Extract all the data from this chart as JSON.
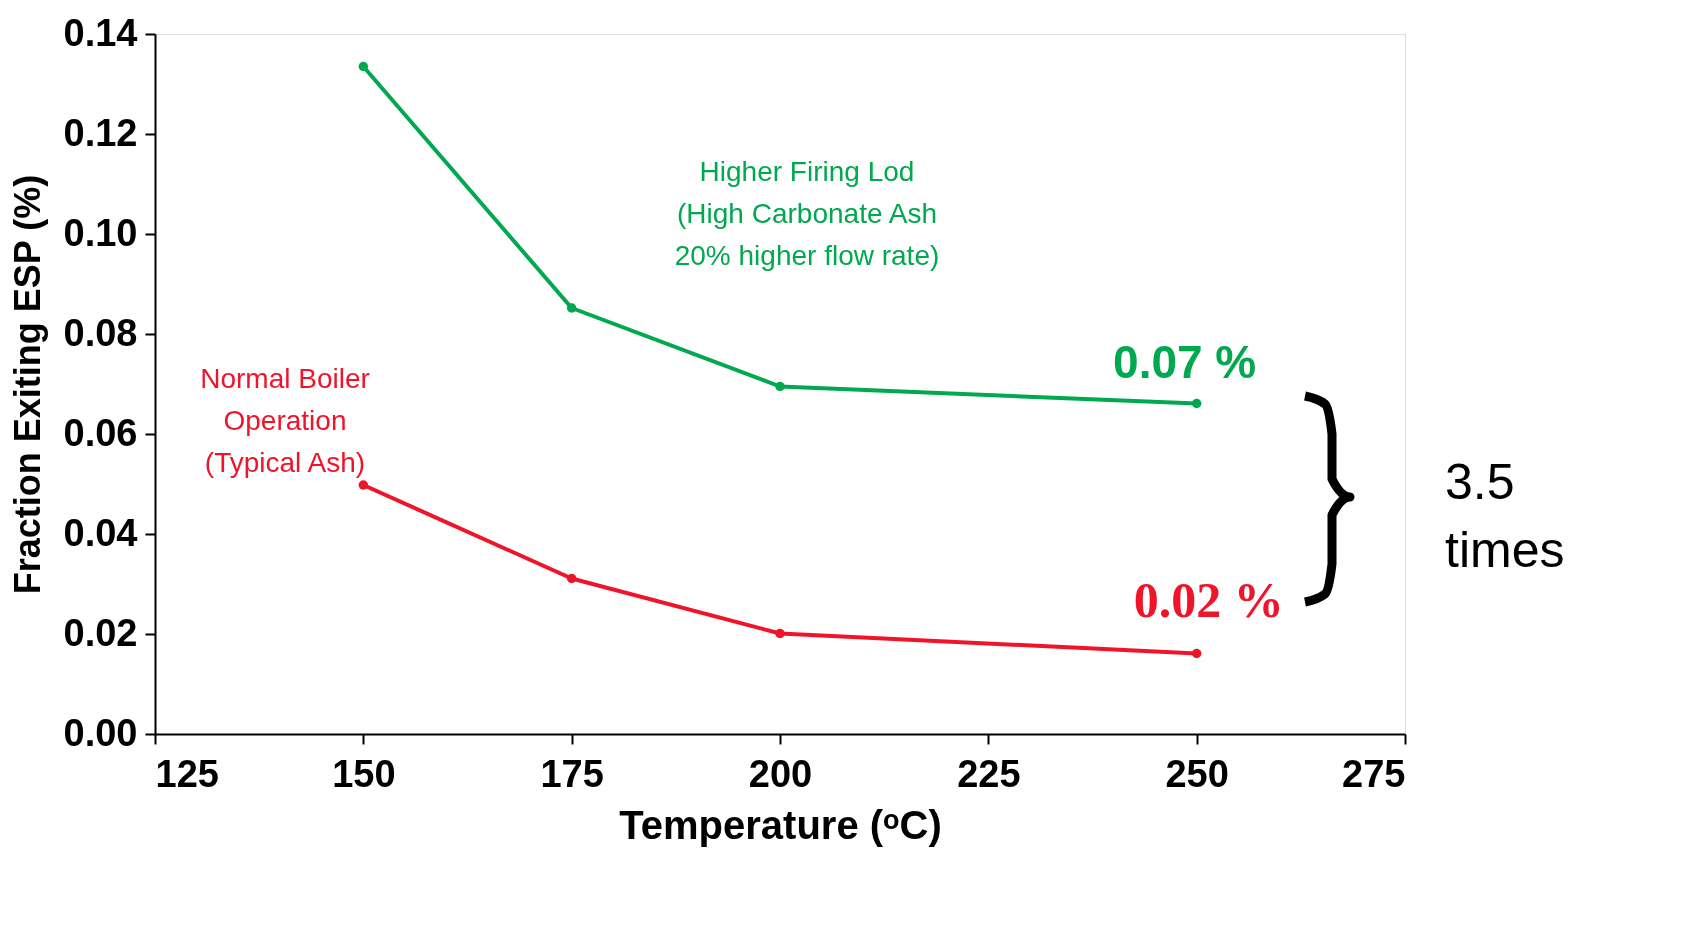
{
  "chart_data": {
    "type": "line",
    "xlabel": "Temperature (ᵒC)",
    "ylabel": "Fraction Exiting ESP (%)",
    "x": [
      150,
      175,
      200,
      250
    ],
    "series": [
      {
        "name": "Higher Firing Lod\n(High Carbonate Ash\n20% higher flow rate)",
        "color": "#00a84f",
        "values": [
          0.1335,
          0.0852,
          0.0695,
          0.0661
        ]
      },
      {
        "name": "Normal Boiler\nOperation\n(Typical Ash)",
        "color": "#f0142a",
        "values": [
          0.0498,
          0.0311,
          0.0201,
          0.0161
        ]
      }
    ],
    "annotations": [
      {
        "text": "0.07 %",
        "x": 250,
        "y": 0.0661
      },
      {
        "text": "0.02 %",
        "x": 250,
        "y": 0.0161
      },
      "3.5\ntimes"
    ],
    "xlim": [
      125,
      275
    ],
    "xticks": [
      125,
      150,
      175,
      200,
      225,
      250,
      275
    ],
    "ylim": [
      0,
      0.14
    ],
    "yticks": [
      {
        "value": 0,
        "label": "0.00"
      },
      {
        "value": 0.02,
        "label": "0.02"
      },
      {
        "value": 0.04,
        "label": "0.04"
      },
      {
        "value": 0.06,
        "label": "0.06"
      },
      {
        "value": 0.08,
        "label": "0.08"
      },
      {
        "value": 0.1,
        "label": "0.10"
      },
      {
        "value": 0.12,
        "label": "0.12"
      },
      {
        "value": 0.14,
        "label": "0.14"
      }
    ],
    "marker": "circle",
    "line_style": "solid",
    "grid": false
  }
}
